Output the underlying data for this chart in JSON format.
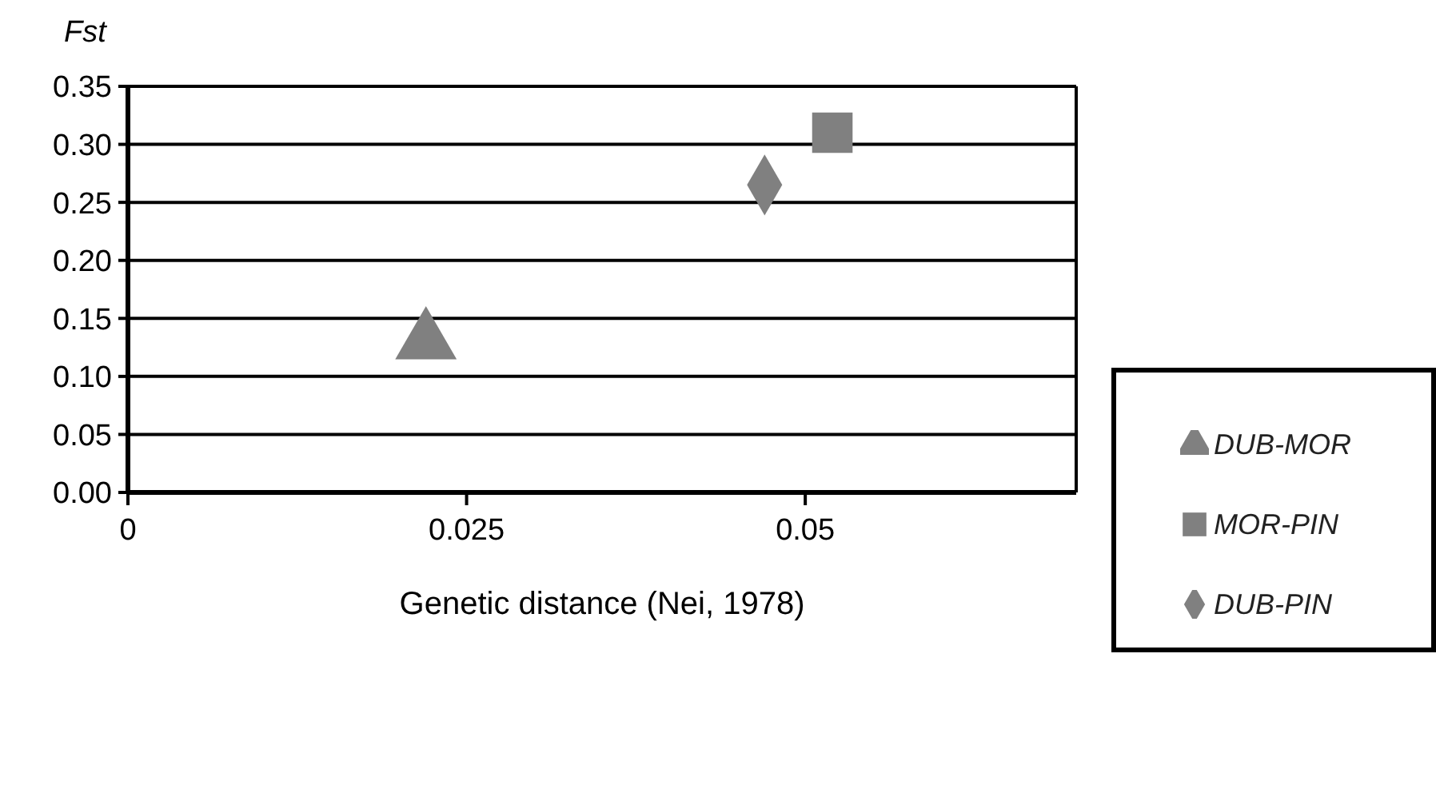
{
  "chart_data": {
    "type": "scatter",
    "xlabel": "Genetic distance (Nei, 1978)",
    "ylabel": "Fst",
    "xlim": [
      0,
      0.07
    ],
    "xticks": [
      0,
      0.025,
      0.05
    ],
    "ylim": [
      0,
      0.35
    ],
    "yticks": [
      {
        "value": 0,
        "label": "0.00"
      },
      {
        "value": 0.05,
        "label": "0.05"
      },
      {
        "value": 0.1,
        "label": "0.10"
      },
      0.15,
      {
        "value": 0.2,
        "label": "0.20"
      },
      0.25,
      {
        "value": 0.3,
        "label": "0.30"
      },
      0.35
    ],
    "grid": "y",
    "legend": "right",
    "series": [
      {
        "name": "DUB-MOR",
        "color": "#808080",
        "marker": "triangle",
        "x": [
          0.022
        ],
        "values": [
          0.13
        ]
      },
      {
        "name": "MOR-PIN",
        "color": "#808080",
        "marker": "square",
        "x": [
          0.052
        ],
        "values": [
          0.31
        ]
      },
      {
        "name": "DUB-PIN",
        "color": "#808080",
        "marker": "diamond",
        "x": [
          0.047
        ],
        "values": [
          0.265
        ]
      }
    ]
  }
}
